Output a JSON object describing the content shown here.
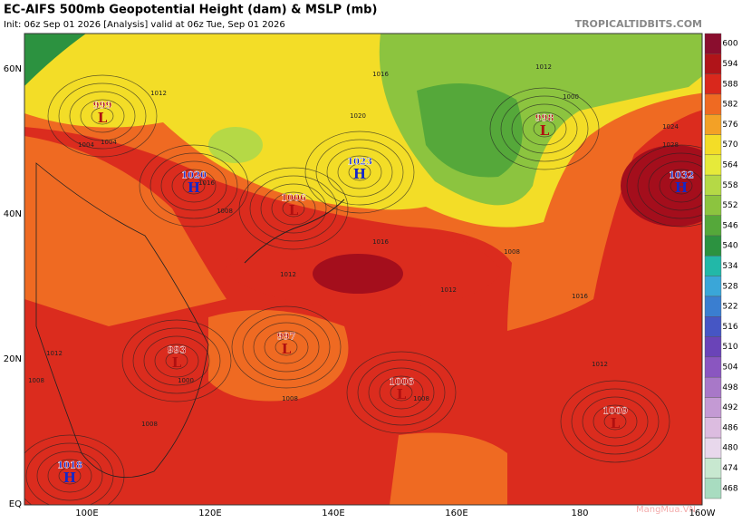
{
  "header": {
    "title": "EC-AIFS 500mb Geopotential Height (dam) & MSLP (mb)",
    "subtitle": "Init: 06z Sep 01 2026   [Analysis]   valid at 06z Tue, Sep 01 2026",
    "brand": "TROPICALTIDBITS.COM"
  },
  "map": {
    "lat_labels": [
      "60N",
      "40N",
      "20N",
      "EQ"
    ],
    "lon_labels": [
      "100E",
      "120E",
      "140E",
      "160E",
      "180",
      "160W"
    ],
    "centers": [
      {
        "letter": "L",
        "pressure": "999"
      },
      {
        "letter": "H",
        "pressure": "1020"
      },
      {
        "letter": "H",
        "pressure": "1023"
      },
      {
        "letter": "L",
        "pressure": "1006"
      },
      {
        "letter": "L",
        "pressure": "998"
      },
      {
        "letter": "H",
        "pressure": "1032"
      },
      {
        "letter": "L",
        "pressure": "993"
      },
      {
        "letter": "L",
        "pressure": "997"
      },
      {
        "letter": "L",
        "pressure": "1006"
      },
      {
        "letter": "L",
        "pressure": "1009"
      },
      {
        "letter": "H",
        "pressure": "1018"
      }
    ],
    "isobar_labels": [
      "1016",
      "1012",
      "1008",
      "1004",
      "1016",
      "1020",
      "1012",
      "1008",
      "1000",
      "1016",
      "1012",
      "1008",
      "1016",
      "1012",
      "1008",
      "1024",
      "1028",
      "1012",
      "1004",
      "1008",
      "1000",
      "1008",
      "1012"
    ],
    "watermark": "MangMua.VN"
  },
  "colorbar": [
    {
      "value": 600,
      "color": "#8a0e2e"
    },
    {
      "value": 594,
      "color": "#b01419"
    },
    {
      "value": 588,
      "color": "#d9281c"
    },
    {
      "value": 582,
      "color": "#ef6a22"
    },
    {
      "value": 576,
      "color": "#f3a126"
    },
    {
      "value": 570,
      "color": "#f3dd27"
    },
    {
      "value": 564,
      "color": "#e6ea3a"
    },
    {
      "value": 558,
      "color": "#b5d946"
    },
    {
      "value": 552,
      "color": "#8cc43f"
    },
    {
      "value": 546,
      "color": "#55a83a"
    },
    {
      "value": 540,
      "color": "#2c9240"
    },
    {
      "value": 534,
      "color": "#22b8a8"
    },
    {
      "value": 528,
      "color": "#3aa6d8"
    },
    {
      "value": 522,
      "color": "#3a7ed0"
    },
    {
      "value": 516,
      "color": "#4656c4"
    },
    {
      "value": 510,
      "color": "#6a44b8"
    },
    {
      "value": 504,
      "color": "#8a56c0"
    },
    {
      "value": 498,
      "color": "#a878c8"
    },
    {
      "value": 492,
      "color": "#c49ad4"
    },
    {
      "value": 486,
      "color": "#dcbce0"
    },
    {
      "value": 480,
      "color": "#e8d8ec"
    },
    {
      "value": 474,
      "color": "#c8e8d0"
    },
    {
      "value": 468,
      "color": "#a8dcc0"
    }
  ]
}
